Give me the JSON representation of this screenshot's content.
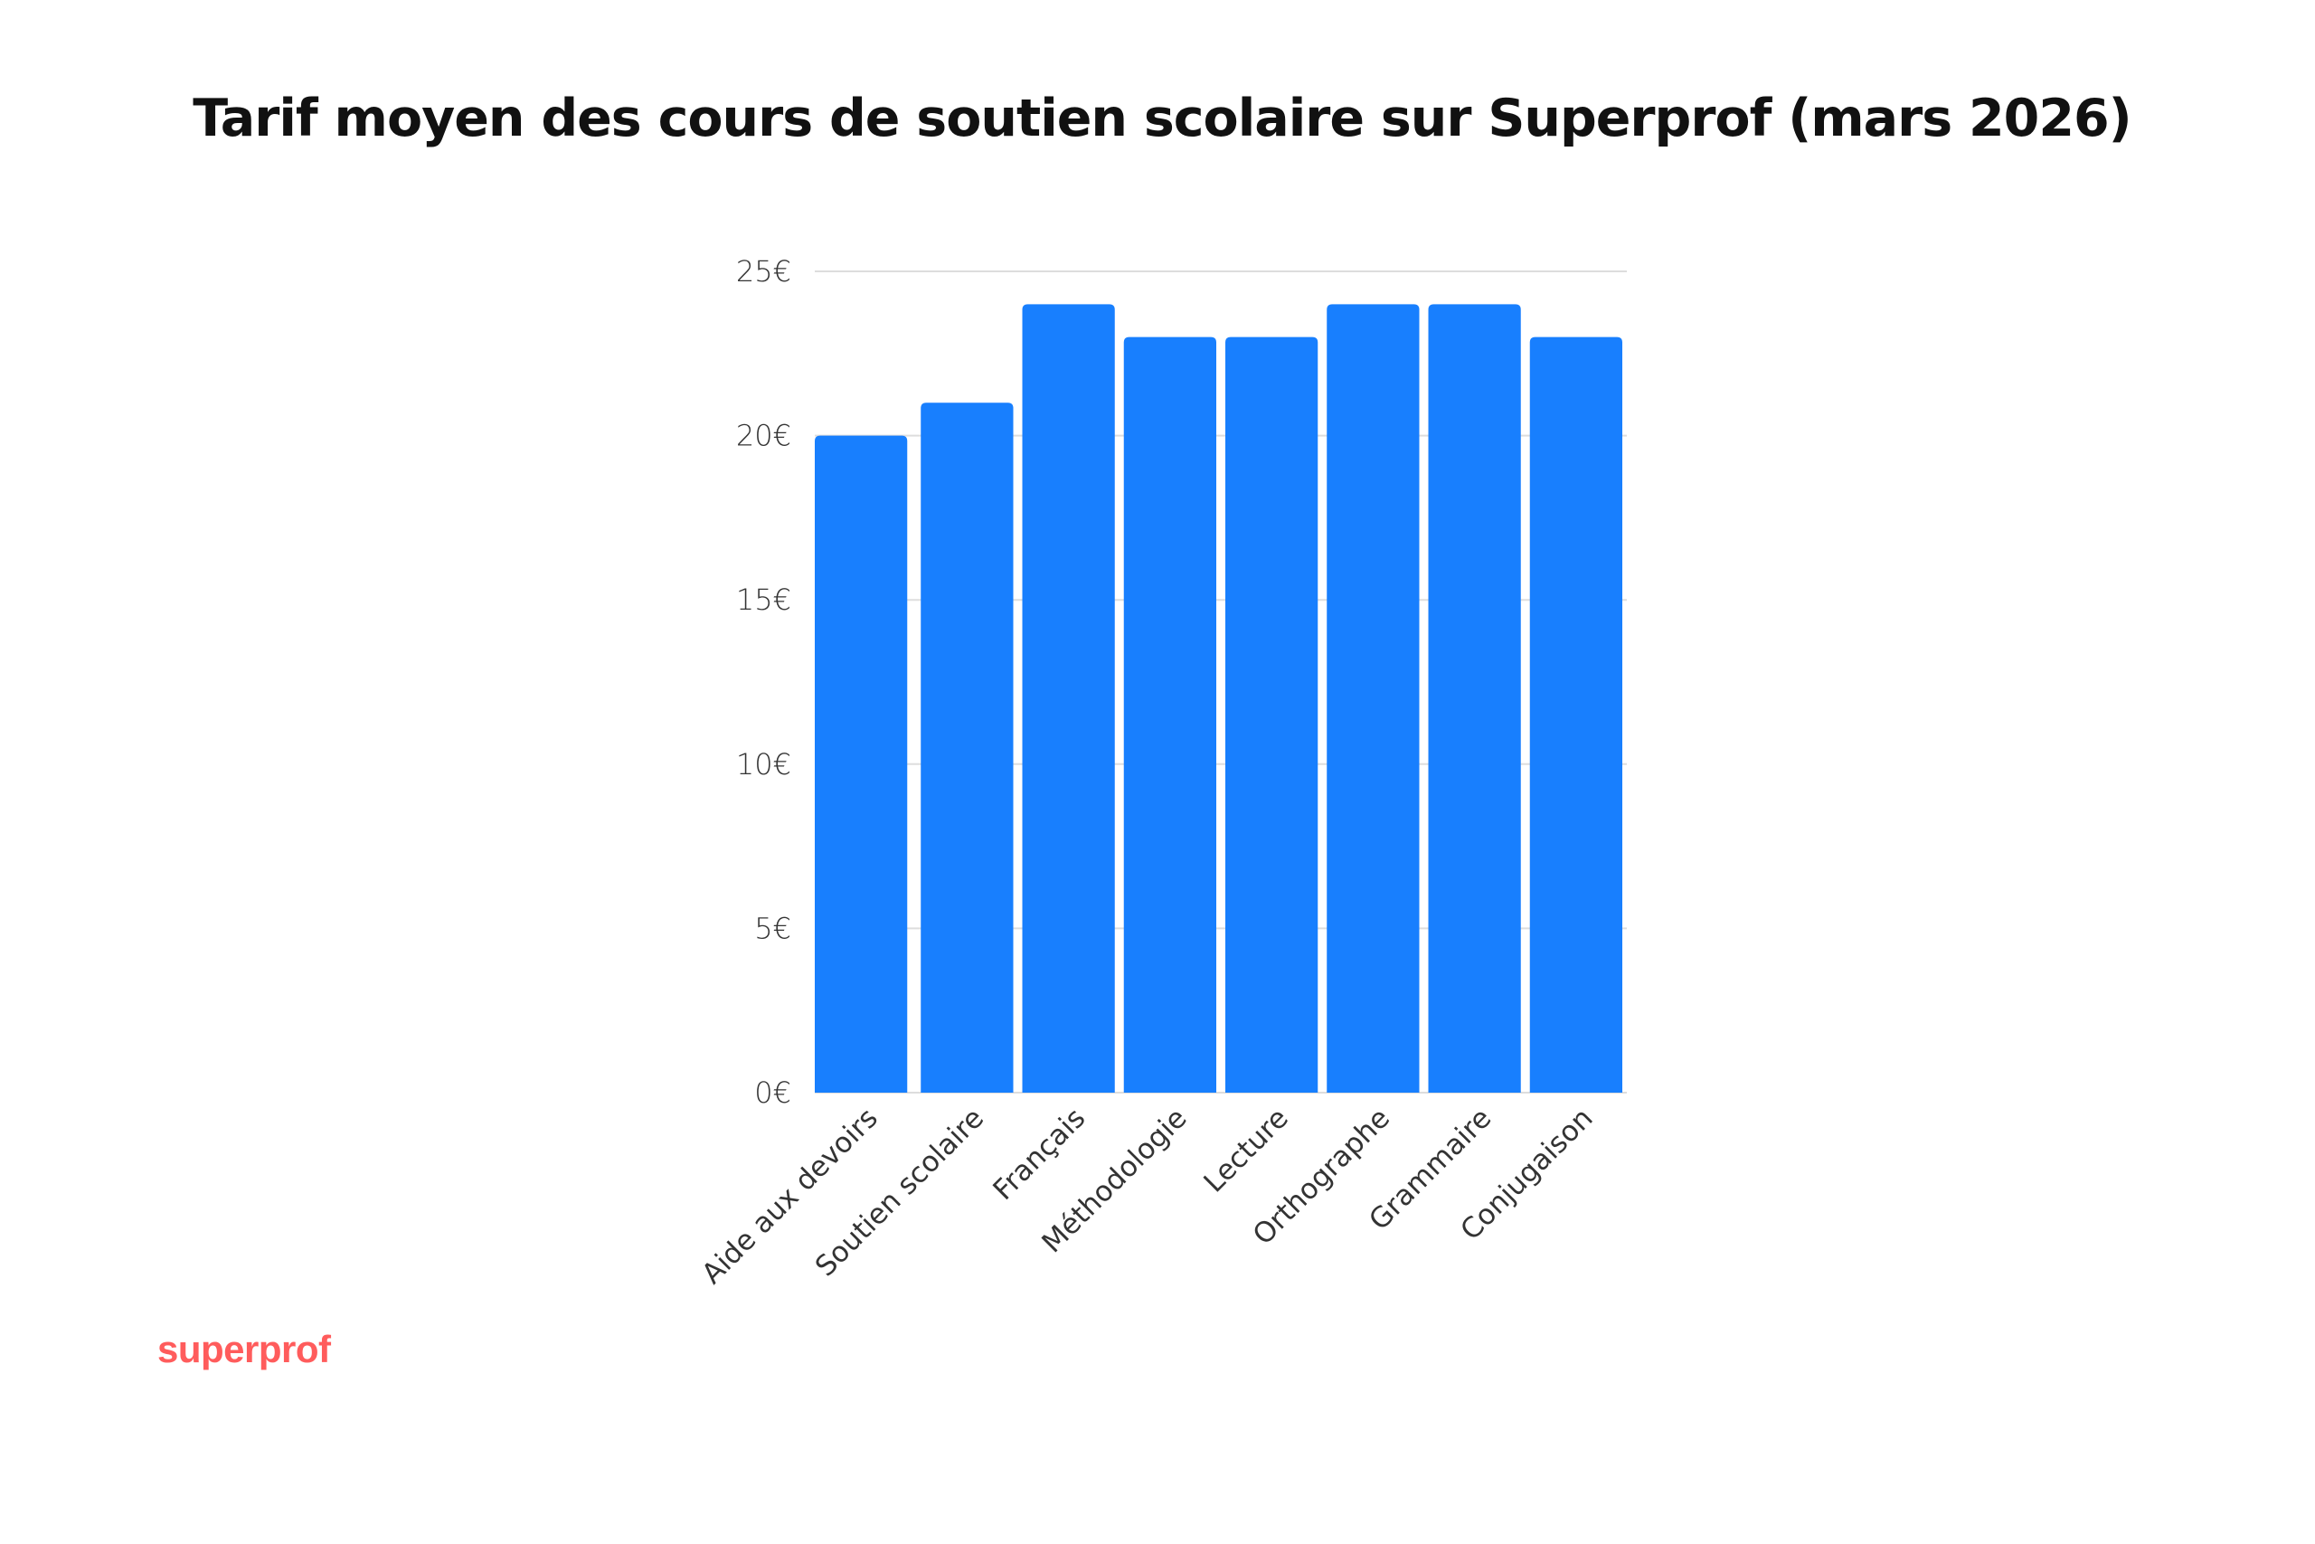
{
  "chart_data": {
    "type": "bar",
    "title": "Tarif moyen des cours de soutien scolaire sur Superprof (mars 2026)",
    "categories": [
      "Aide aux devoirs",
      "Soutien scolaire",
      "Français",
      "Méthodologie",
      "Lecture",
      "Orthographe",
      "Grammaire",
      "Conjugaison"
    ],
    "values": [
      20,
      21,
      24,
      23,
      23,
      24,
      24,
      23
    ],
    "ylim": [
      0,
      25
    ],
    "yticks": [
      0,
      5,
      10,
      15,
      20,
      25
    ],
    "ytick_labels": [
      "0€",
      "5€",
      "10€",
      "15€",
      "20€",
      "25€"
    ],
    "xlabel": "",
    "ylabel": "",
    "grid": true,
    "bar_color": "#187ffe"
  },
  "brand": {
    "logo_text": "superprof",
    "color": "#ff5c5c"
  }
}
